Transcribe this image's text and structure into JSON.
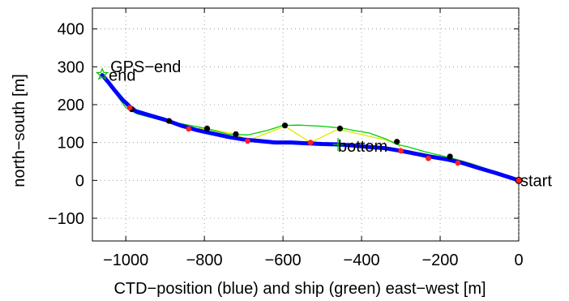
{
  "chart_data": {
    "type": "line",
    "xlabel": "CTD−position (blue) and ship (green) east−west [m]",
    "ylabel": "north−south [m]",
    "xlim": [
      -1085,
      0
    ],
    "ylim": [
      -160,
      455
    ],
    "x_ticks": [
      -1000,
      -800,
      -600,
      -400,
      -200,
      0
    ],
    "x_tick_labels": [
      "−1000",
      "−800",
      "−600",
      "−400",
      "−200",
      "0"
    ],
    "y_ticks": [
      -100,
      0,
      100,
      200,
      300,
      400
    ],
    "y_tick_labels": [
      "−100",
      "0",
      "100",
      "200",
      "300",
      "400"
    ],
    "grid": true,
    "colors": {
      "ctd": "#0000ff",
      "ship": "#00d000",
      "yellow_line": "#e6e600",
      "black_marker": "#000000",
      "red_marker": "#ff2020",
      "bottom_marker": "#00c000"
    },
    "series": [
      {
        "style": "ctd",
        "x": [
          0,
          -30,
          -60,
          -100,
          -140,
          -180,
          -220,
          -260,
          -300,
          -340,
          -380,
          -420,
          -460,
          -500,
          -540,
          -580,
          -620,
          -660,
          -700,
          -740,
          -780,
          -820,
          -860,
          -900,
          -940,
          -975,
          -990,
          -1010,
          -1030,
          -1045,
          -1055,
          -1060
        ],
        "y": [
          0,
          10,
          20,
          32,
          45,
          55,
          62,
          70,
          78,
          85,
          88,
          92,
          95,
          96,
          98,
          100,
          100,
          104,
          108,
          115,
          124,
          133,
          145,
          160,
          172,
          183,
          195,
          215,
          240,
          260,
          272,
          278
        ]
      },
      {
        "style": "ship",
        "x": [
          0,
          -40,
          -80,
          -120,
          -160,
          -200,
          -240,
          -280,
          -310,
          -340,
          -380,
          -420,
          -450,
          -500,
          -560,
          -600,
          -640,
          -690,
          -740,
          -800,
          -860,
          -920,
          -970,
          -1000,
          -1030,
          -1050,
          -1060
        ],
        "y": [
          0,
          15,
          30,
          44,
          56,
          66,
          76,
          88,
          95,
          110,
          125,
          132,
          138,
          143,
          146,
          145,
          132,
          120,
          122,
          138,
          150,
          162,
          175,
          192,
          235,
          265,
          280
        ]
      },
      {
        "style": "yellow",
        "x": [
          0,
          -160,
          -180,
          -230,
          -295,
          -310,
          -460,
          -530,
          -595,
          -690,
          -720,
          -795,
          -840,
          -890,
          -985,
          -990
        ],
        "y": [
          0,
          48,
          60,
          58,
          75,
          100,
          135,
          100,
          143,
          105,
          122,
          137,
          137,
          157,
          188,
          195
        ]
      }
    ],
    "black_points": {
      "x": [
        0,
        -175,
        -310,
        -455,
        -595,
        -720,
        -793,
        -890,
        -985
      ],
      "y": [
        0,
        63,
        102,
        137,
        145,
        122,
        137,
        157,
        188
      ]
    },
    "red_points": {
      "x": [
        0,
        -155,
        -230,
        -300,
        -530,
        -690,
        -840,
        -990
      ],
      "y": [
        0,
        46,
        58,
        78,
        100,
        104,
        136,
        192
      ]
    },
    "bottom_marker": {
      "x": -460,
      "y": 95
    },
    "gps_end_marker": {
      "x": -1060,
      "y": 280
    },
    "annotations": [
      {
        "text": "start",
        "x": 0,
        "y": 0
      },
      {
        "text": "bottom",
        "x": -460,
        "y": 95
      },
      {
        "text": "GPS−end",
        "x": -1060,
        "y": 290
      },
      {
        "text": "end",
        "x": -1060,
        "y": 280
      }
    ]
  }
}
